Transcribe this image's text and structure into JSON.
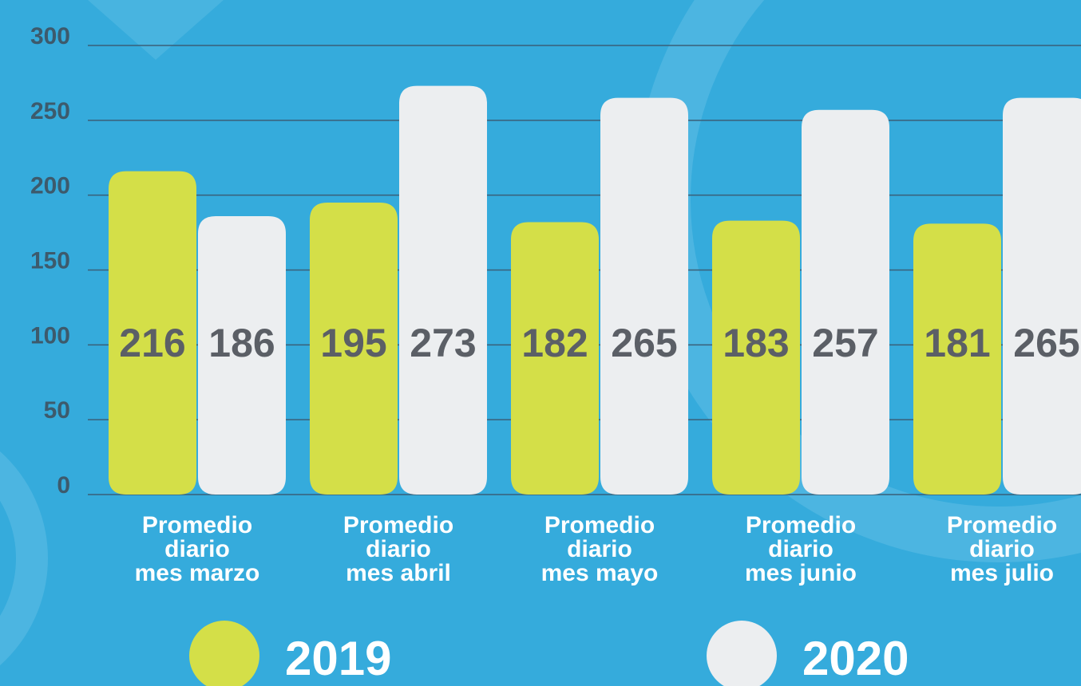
{
  "chart_data": {
    "type": "bar",
    "categories": [
      "Promedio\ndiario\nmes marzo",
      "Promedio\ndiario\nmes abril",
      "Promedio\ndiario\nmes mayo",
      "Promedio\ndiario\nmes junio",
      "Promedio\ndiario\nmes julio"
    ],
    "series": [
      {
        "name": "2019",
        "color": "#d4df48",
        "values": [
          216,
          195,
          182,
          183,
          181
        ]
      },
      {
        "name": "2020",
        "color": "#eceef0",
        "values": [
          186,
          273,
          265,
          257,
          265
        ]
      }
    ],
    "ylim": [
      0,
      300
    ],
    "yticks": [
      0,
      50,
      100,
      150,
      200,
      250,
      300
    ],
    "grid": true,
    "legend": "bottom",
    "value_label_color": "#5b5f66"
  }
}
